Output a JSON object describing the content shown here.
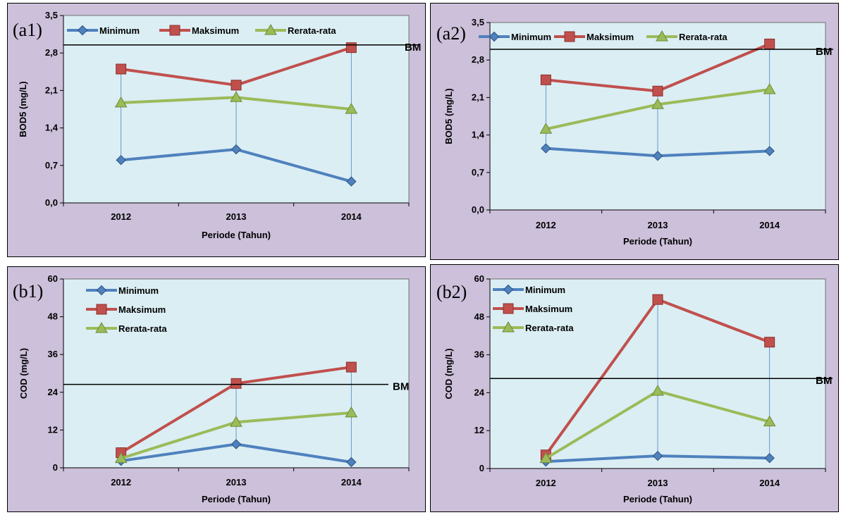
{
  "chart_data": [
    {
      "id": "a1",
      "type": "line",
      "panel_label": "(a1)",
      "categories": [
        "2012",
        "2013",
        "2014"
      ],
      "xlabel": "Periode (Tahun)",
      "ylabel": "BOD5 (mg/L)",
      "ylim": [
        0,
        3.5
      ],
      "yticks": [
        "0,0",
        "0,7",
        "1,4",
        "2,1",
        "2,8",
        "3,5"
      ],
      "baseline": {
        "label": "BM",
        "value": 2.95
      },
      "legend_position": "top-horizontal",
      "series": [
        {
          "name": "Minimum",
          "color": "#4f81bd",
          "marker": "diamond",
          "values": [
            0.8,
            1.0,
            0.4
          ]
        },
        {
          "name": "Maksimum",
          "color": "#c0504d",
          "marker": "square",
          "values": [
            2.5,
            2.2,
            2.9
          ]
        },
        {
          "name": "Rerata-rata",
          "color": "#9bbb59",
          "marker": "triangle",
          "values": [
            1.87,
            1.97,
            1.75
          ]
        }
      ]
    },
    {
      "id": "a2",
      "type": "line",
      "panel_label": "(a2)",
      "categories": [
        "2012",
        "2013",
        "2014"
      ],
      "xlabel": "Periode (Tahun)",
      "ylabel": "BOD5 (mg/L)",
      "ylim": [
        0,
        3.5
      ],
      "yticks": [
        "0,0",
        "0,7",
        "1,4",
        "2,1",
        "2,8",
        "3,5"
      ],
      "baseline": {
        "label": "BM",
        "value": 3.0
      },
      "legend_position": "top-horizontal",
      "series": [
        {
          "name": "Minimum",
          "color": "#4f81bd",
          "marker": "diamond",
          "values": [
            1.15,
            1.01,
            1.1
          ]
        },
        {
          "name": "Maksimum",
          "color": "#c0504d",
          "marker": "square",
          "values": [
            2.43,
            2.22,
            3.1
          ]
        },
        {
          "name": "Rerata-rata",
          "color": "#9bbb59",
          "marker": "triangle",
          "values": [
            1.51,
            1.97,
            2.25
          ]
        }
      ]
    },
    {
      "id": "b1",
      "type": "line",
      "panel_label": "(b1)",
      "categories": [
        "2012",
        "2013",
        "2014"
      ],
      "xlabel": "Periode (Tahun)",
      "ylabel": "COD (mg/L)",
      "ylim": [
        0,
        60
      ],
      "yticks": [
        "0",
        "12",
        "24",
        "36",
        "48",
        "60"
      ],
      "baseline": {
        "label": "BM",
        "value": 26.5
      },
      "legend_position": "top-left-vertical",
      "series": [
        {
          "name": "Minimum",
          "color": "#4f81bd",
          "marker": "diamond",
          "values": [
            2.2,
            7.5,
            1.8
          ]
        },
        {
          "name": "Maksimum",
          "color": "#c0504d",
          "marker": "square",
          "values": [
            4.8,
            26.8,
            32.0
          ]
        },
        {
          "name": "Rerata-rata",
          "color": "#9bbb59",
          "marker": "triangle",
          "values": [
            3.0,
            14.5,
            17.5
          ]
        }
      ]
    },
    {
      "id": "b2",
      "type": "line",
      "panel_label": "(b2)",
      "categories": [
        "2012",
        "2013",
        "2014"
      ],
      "xlabel": "Periode (Tahun)",
      "ylabel": "COD (mg/L)",
      "ylim": [
        0,
        60
      ],
      "yticks": [
        "0",
        "12",
        "24",
        "36",
        "48",
        "60"
      ],
      "baseline": {
        "label": "BM",
        "value": 28.5
      },
      "legend_position": "top-left-vertical",
      "series": [
        {
          "name": "Minimum",
          "color": "#4f81bd",
          "marker": "diamond",
          "values": [
            2.2,
            4.0,
            3.3
          ]
        },
        {
          "name": "Maksimum",
          "color": "#c0504d",
          "marker": "square",
          "values": [
            4.3,
            53.5,
            40.0
          ]
        },
        {
          "name": "Rerata-rata",
          "color": "#9bbb59",
          "marker": "triangle",
          "values": [
            3.2,
            24.5,
            14.8
          ]
        }
      ]
    }
  ]
}
